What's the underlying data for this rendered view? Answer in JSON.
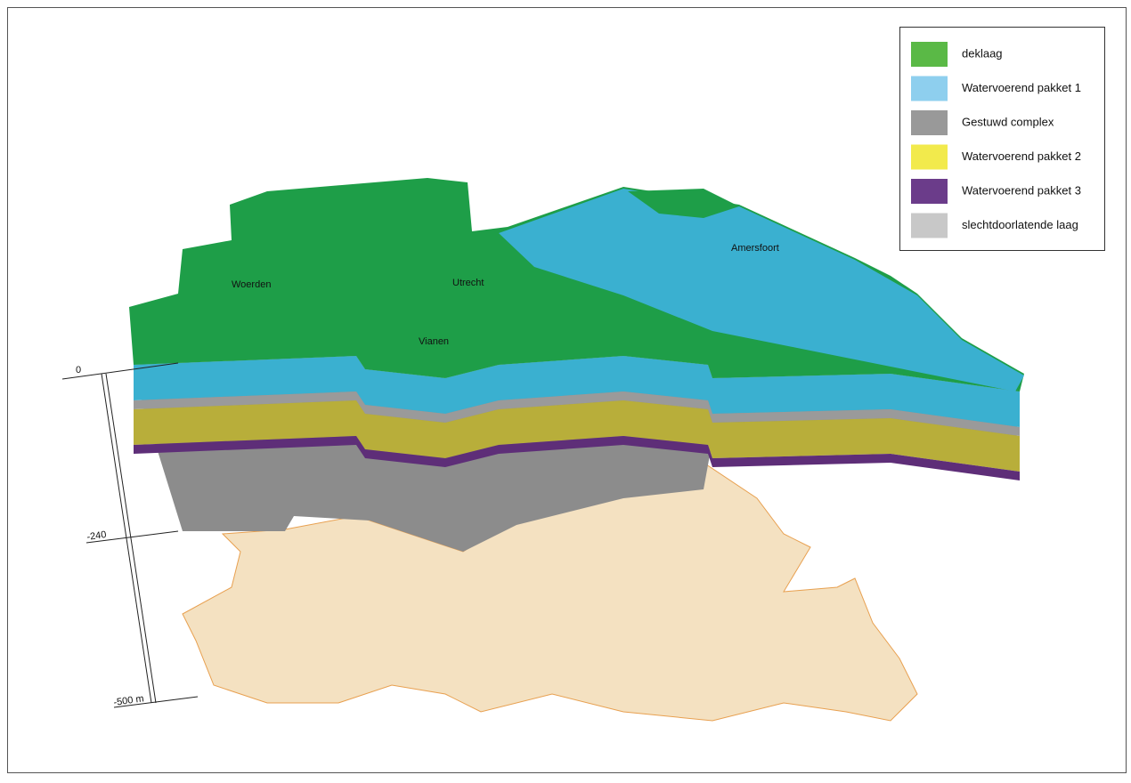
{
  "legend": {
    "items": [
      {
        "label": "deklaag",
        "color": "#5ab946"
      },
      {
        "label": "Watervoerend pakket 1",
        "color": "#8ecfee"
      },
      {
        "label": "Gestuwd complex",
        "color": "#999999"
      },
      {
        "label": "Watervoerend pakket 2",
        "color": "#f2ea4c"
      },
      {
        "label": "Watervoerend pakket 3",
        "color": "#6b3c8a"
      },
      {
        "label": "slechtdoorlatende laag",
        "color": "#c8c8c8"
      }
    ]
  },
  "places": [
    {
      "label": "Woerden"
    },
    {
      "label": "Utrecht"
    },
    {
      "label": "Vianen"
    },
    {
      "label": "Amersfoort"
    }
  ],
  "depth_scale": {
    "labels": [
      "0",
      "-240",
      "-500 m"
    ]
  }
}
